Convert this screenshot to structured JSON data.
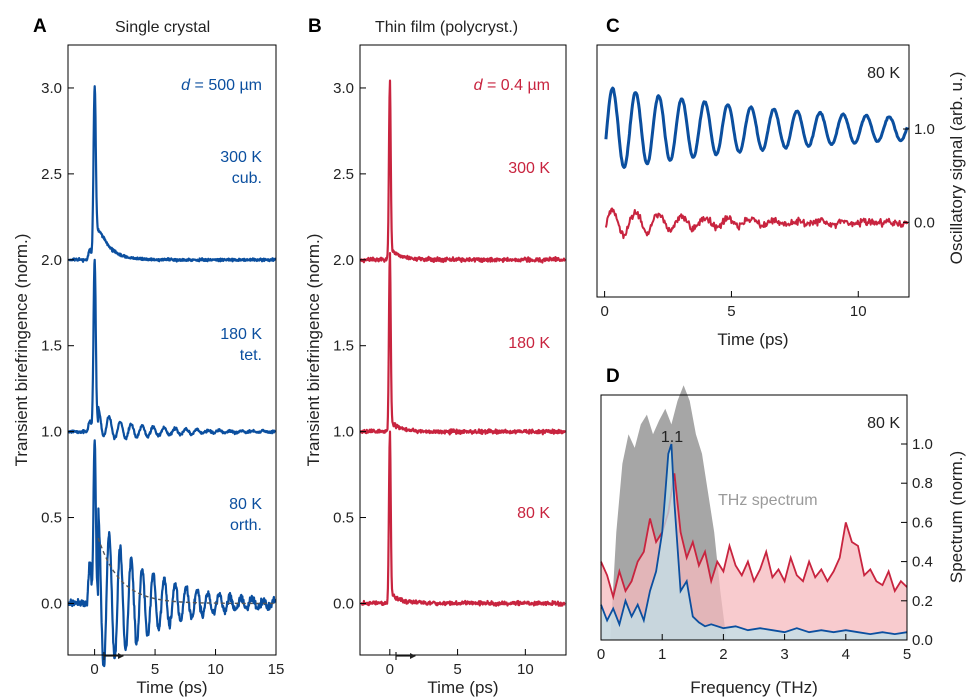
{
  "colors": {
    "blue": "#0b4f9f",
    "red": "#c8243f",
    "gray": "#a6a6a6",
    "red_fill": "#f6b9bd",
    "blue_fill": "#bfe2ea"
  },
  "chart_data": [
    {
      "panel": "A",
      "type": "line",
      "title": "Single crystal",
      "xlabel": "Time (ps)",
      "ylabel": "Transient birefringence (norm.)",
      "xlim": [
        -2.2,
        15
      ],
      "ylim": [
        -0.3,
        3.25
      ],
      "xticks": [
        0,
        5,
        10,
        15
      ],
      "yticks": [
        0.0,
        0.5,
        1.0,
        1.5,
        2.0,
        2.5,
        3.0
      ],
      "ytick_labels": [
        "0.0",
        "0.5",
        "1.0",
        "1.5",
        "2.0",
        "2.5",
        "3.0"
      ],
      "annotations": {
        "thickness_var": "d",
        "thickness_val": " = 500 µm",
        "t300": "300 K",
        "p300": "cub.",
        "t180": "180 K",
        "p180": "tet.",
        "t80": "80 K",
        "p80": "orth."
      },
      "color": "#0b4f9f",
      "series": [
        {
          "temperature": "300 K",
          "offset": 2.0,
          "peak": 3.0,
          "osc_amp": 0.0,
          "osc_freq_thz": 0.0
        },
        {
          "temperature": "180 K",
          "offset": 1.0,
          "peak": 2.0,
          "osc_amp": 0.08,
          "osc_freq_thz": 1.1
        },
        {
          "temperature": "80 K",
          "offset": 0.0,
          "peak": 0.95,
          "osc_amp": 0.5,
          "osc_freq_thz": 1.1
        }
      ]
    },
    {
      "panel": "B",
      "type": "line",
      "title": "Thin film (polycryst.)",
      "xlabel": "Time (ps)",
      "ylabel": "Transient birefringence (norm.)",
      "xlim": [
        -2.2,
        13
      ],
      "ylim": [
        -0.3,
        3.25
      ],
      "xticks": [
        0,
        5,
        10
      ],
      "yticks": [
        0.0,
        0.5,
        1.0,
        1.5,
        2.0,
        2.5,
        3.0
      ],
      "ytick_labels": [
        "0.0",
        "0.5",
        "1.0",
        "1.5",
        "2.0",
        "2.5",
        "3.0"
      ],
      "annotations": {
        "thickness_var": "d",
        "thickness_val": " = 0.4 µm",
        "t300": "300 K",
        "t180": "180 K",
        "t80": "80 K"
      },
      "color": "#c8243f",
      "series": [
        {
          "temperature": "300 K",
          "offset": 2.0,
          "peak": 3.0
        },
        {
          "temperature": "180 K",
          "offset": 1.0,
          "peak": 2.0
        },
        {
          "temperature": "80 K",
          "offset": 0.0,
          "peak": 0.95
        }
      ]
    },
    {
      "panel": "C",
      "type": "line",
      "xlabel": "Time (ps)",
      "ylabel": "Oscillatory signal (arb. u.)",
      "xlim": [
        -0.3,
        12
      ],
      "ylim": [
        -0.8,
        1.9
      ],
      "xticks": [
        0,
        5,
        10
      ],
      "yticks": [
        0.0,
        1.0
      ],
      "ytick_labels": [
        "0.0",
        "1.0"
      ],
      "annotations": {
        "temp": "80 K"
      },
      "series": [
        {
          "name": "single crystal",
          "color": "#0b4f9f",
          "offset": 1.0,
          "amp": 0.45,
          "freq_thz": 1.1,
          "decay_ps": 9.0
        },
        {
          "name": "thin film",
          "color": "#c8243f",
          "offset": 0.0,
          "amp": 0.15,
          "freq_thz": 1.1,
          "decay_ps": 4.0
        }
      ]
    },
    {
      "panel": "D",
      "type": "area",
      "xlabel": "Frequency (THz)",
      "ylabel": "Spectrum (norm.)",
      "xlim": [
        0,
        5
      ],
      "ylim": [
        0,
        1.25
      ],
      "xticks": [
        0,
        1,
        2,
        3,
        4,
        5
      ],
      "yticks": [
        0.0,
        0.2,
        0.4,
        0.6,
        0.8,
        1.0
      ],
      "ytick_labels": [
        "0.0",
        "0.2",
        "0.4",
        "0.6",
        "0.8",
        "1.0"
      ],
      "annotations": {
        "temp": "80 K",
        "thz_label": "THz spectrum",
        "peak_label": "1.1"
      },
      "series": [
        {
          "name": "THz spectrum",
          "color": "#a6a6a6",
          "x": [
            0.15,
            0.25,
            0.35,
            0.45,
            0.55,
            0.65,
            0.75,
            0.85,
            0.95,
            1.05,
            1.15,
            1.25,
            1.35,
            1.45,
            1.55,
            1.65,
            1.75,
            1.85,
            1.95,
            2.05
          ],
          "y": [
            0.0,
            0.55,
            0.9,
            1.05,
            0.98,
            1.1,
            1.15,
            1.05,
            1.12,
            1.18,
            1.1,
            1.22,
            1.3,
            1.22,
            1.05,
            0.95,
            0.75,
            0.55,
            0.25,
            0.0
          ]
        },
        {
          "name": "thin film",
          "color": "#c8243f",
          "x": [
            0.0,
            0.1,
            0.2,
            0.3,
            0.4,
            0.5,
            0.6,
            0.7,
            0.8,
            0.9,
            1.0,
            1.1,
            1.2,
            1.3,
            1.4,
            1.5,
            1.6,
            1.7,
            1.8,
            1.9,
            2.0,
            2.1,
            2.2,
            2.3,
            2.4,
            2.5,
            2.6,
            2.7,
            2.8,
            2.9,
            3.0,
            3.1,
            3.2,
            3.3,
            3.4,
            3.5,
            3.6,
            3.7,
            3.8,
            3.9,
            4.0,
            4.1,
            4.2,
            4.3,
            4.4,
            4.5,
            4.6,
            4.7,
            4.8,
            4.9,
            5.0
          ],
          "y": [
            0.4,
            0.33,
            0.22,
            0.35,
            0.25,
            0.3,
            0.4,
            0.45,
            0.62,
            0.5,
            0.55,
            0.65,
            0.85,
            0.55,
            0.42,
            0.5,
            0.38,
            0.45,
            0.3,
            0.4,
            0.35,
            0.48,
            0.38,
            0.33,
            0.4,
            0.3,
            0.36,
            0.45,
            0.32,
            0.36,
            0.3,
            0.42,
            0.33,
            0.3,
            0.4,
            0.32,
            0.36,
            0.3,
            0.35,
            0.42,
            0.6,
            0.5,
            0.48,
            0.33,
            0.36,
            0.3,
            0.28,
            0.35,
            0.25,
            0.3,
            0.27
          ]
        },
        {
          "name": "single crystal",
          "color": "#0b4f9f",
          "x": [
            0.0,
            0.1,
            0.2,
            0.3,
            0.4,
            0.5,
            0.6,
            0.7,
            0.8,
            0.9,
            1.0,
            1.05,
            1.1,
            1.15,
            1.2,
            1.3,
            1.4,
            1.5,
            1.6,
            1.7,
            1.8,
            2.0,
            2.2,
            2.4,
            2.6,
            2.8,
            3.0,
            3.2,
            3.4,
            3.6,
            3.8,
            4.0,
            4.2,
            4.4,
            4.6,
            4.8,
            5.0
          ],
          "y": [
            0.18,
            0.1,
            0.16,
            0.08,
            0.2,
            0.12,
            0.18,
            0.1,
            0.25,
            0.35,
            0.55,
            0.75,
            0.95,
            1.0,
            0.7,
            0.25,
            0.3,
            0.12,
            0.09,
            0.07,
            0.08,
            0.06,
            0.07,
            0.05,
            0.06,
            0.05,
            0.04,
            0.06,
            0.04,
            0.05,
            0.04,
            0.05,
            0.04,
            0.03,
            0.04,
            0.03,
            0.04
          ]
        }
      ]
    }
  ]
}
